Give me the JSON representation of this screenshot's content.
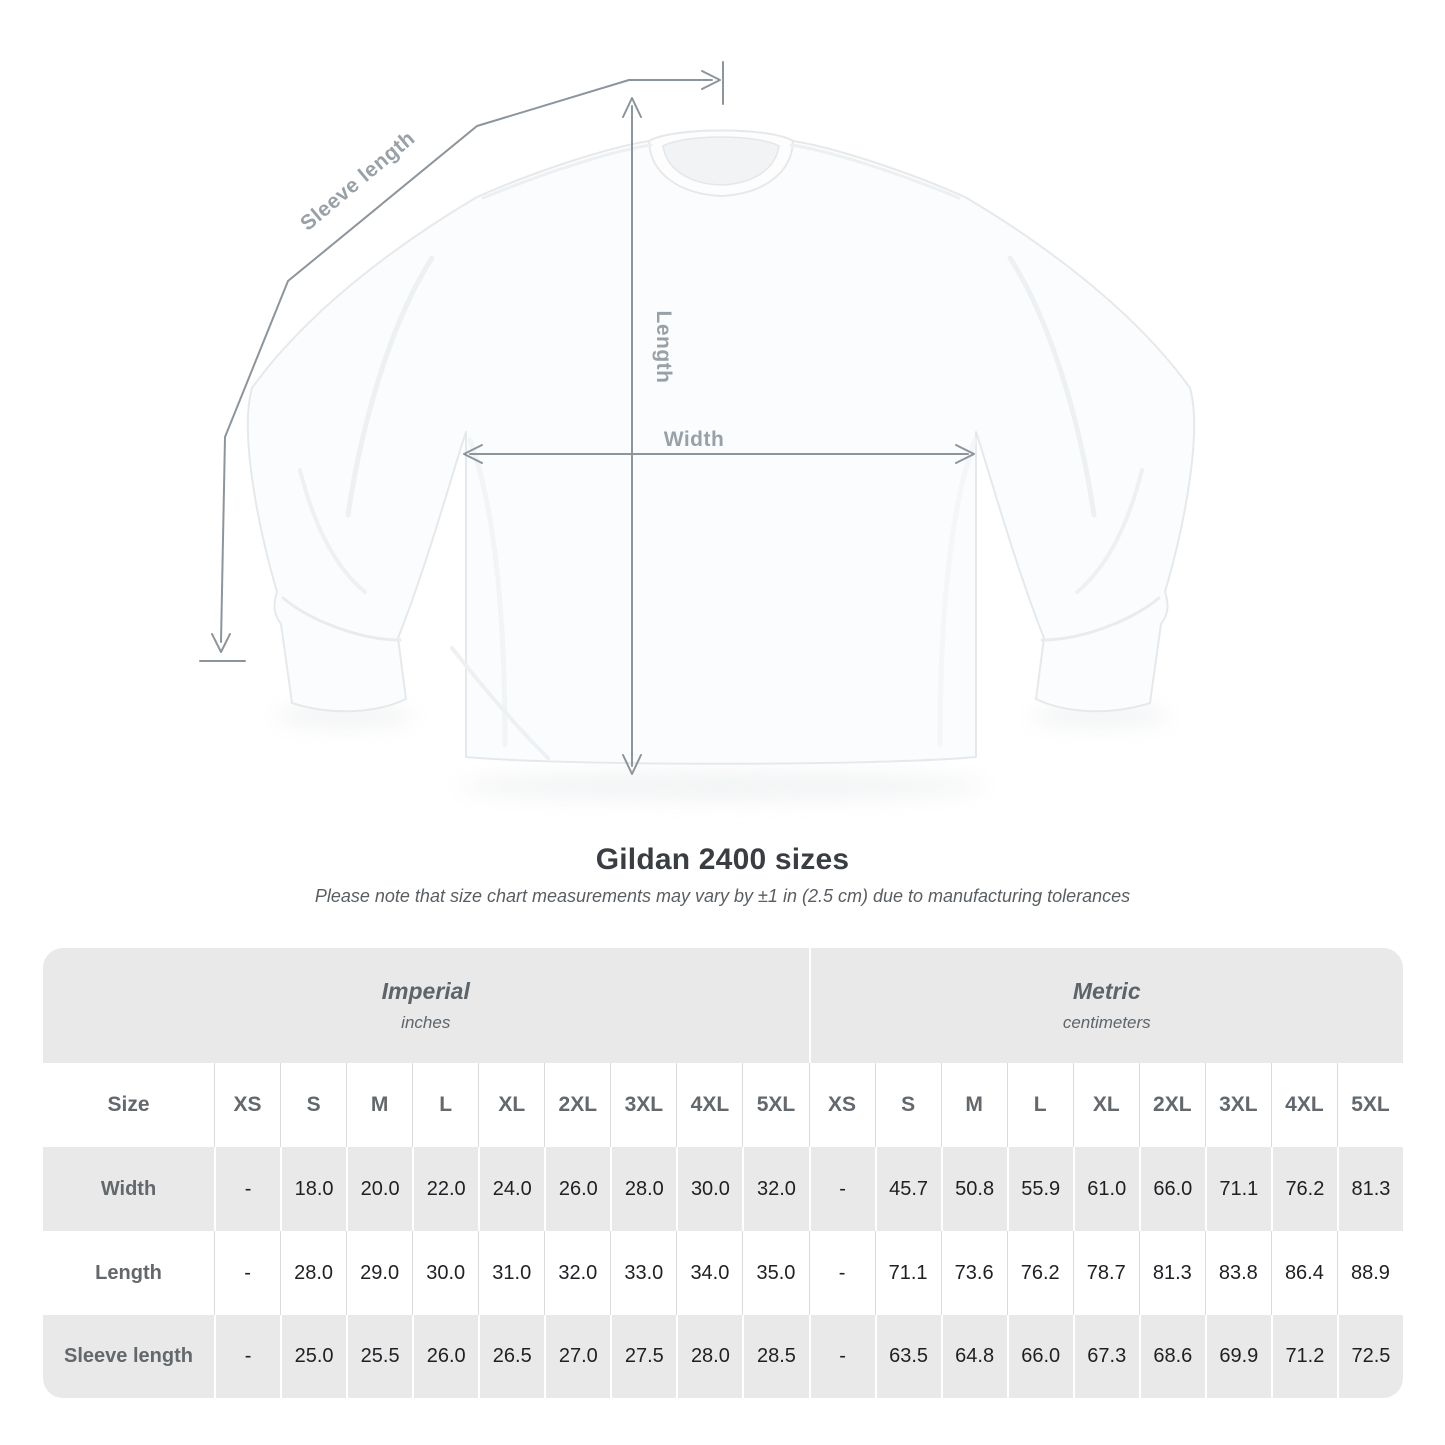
{
  "diagram": {
    "sleeve_length_label": "Sleeve length",
    "length_label": "Length",
    "width_label": "Width"
  },
  "heading": {
    "title": "Gildan 2400 sizes",
    "subtitle": "Please note that size chart measurements may vary by ±1 in (2.5 cm) due to manufacturing tolerances"
  },
  "table": {
    "groups": [
      {
        "label": "Imperial",
        "unit": "inches"
      },
      {
        "label": "Metric",
        "unit": "centimeters"
      }
    ],
    "size_header": "Size",
    "sizes": [
      "XS",
      "S",
      "M",
      "L",
      "XL",
      "2XL",
      "3XL",
      "4XL",
      "5XL"
    ],
    "rows": [
      {
        "label": "Width",
        "imperial": [
          "-",
          "18.0",
          "20.0",
          "22.0",
          "24.0",
          "26.0",
          "28.0",
          "30.0",
          "32.0"
        ],
        "metric": [
          "-",
          "45.7",
          "50.8",
          "55.9",
          "61.0",
          "66.0",
          "71.1",
          "76.2",
          "81.3"
        ]
      },
      {
        "label": "Length",
        "imperial": [
          "-",
          "28.0",
          "29.0",
          "30.0",
          "31.0",
          "32.0",
          "33.0",
          "34.0",
          "35.0"
        ],
        "metric": [
          "-",
          "71.1",
          "73.6",
          "76.2",
          "78.7",
          "81.3",
          "83.8",
          "86.4",
          "88.9"
        ]
      },
      {
        "label": "Sleeve length",
        "imperial": [
          "-",
          "25.0",
          "25.5",
          "26.0",
          "26.5",
          "27.0",
          "27.5",
          "28.0",
          "28.5"
        ],
        "metric": [
          "-",
          "63.5",
          "64.8",
          "66.0",
          "67.3",
          "68.6",
          "69.9",
          "71.2",
          "72.5"
        ]
      }
    ]
  },
  "colors": {
    "row_gray": "#e9e9e9",
    "header_text": "#63686d",
    "value_text": "#1f2023",
    "measure_line": "#8d959c",
    "measure_label": "#99a1a8"
  }
}
